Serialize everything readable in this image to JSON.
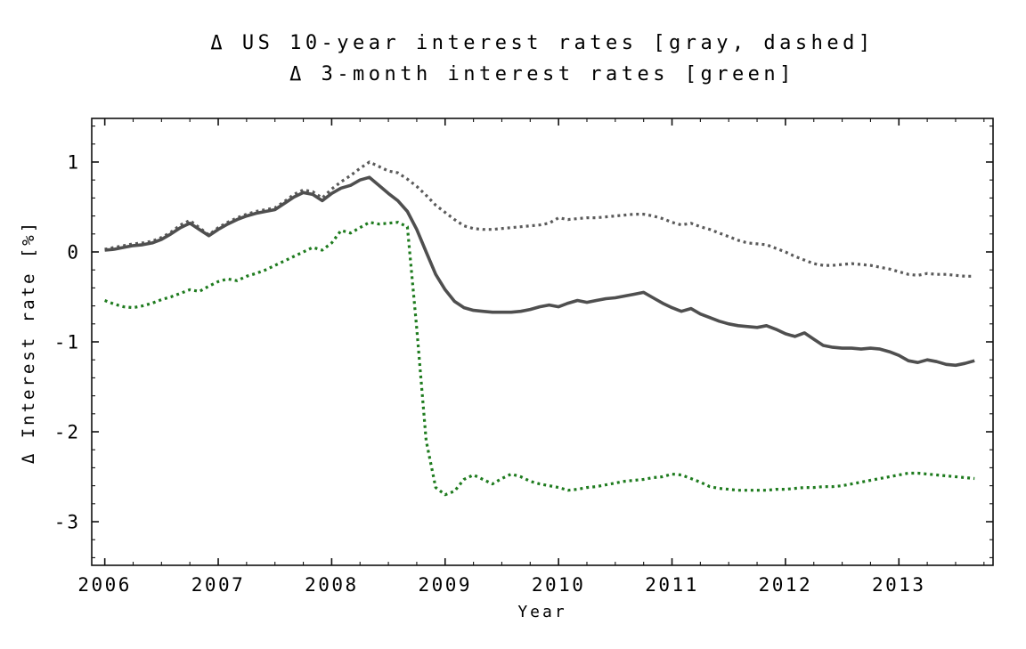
{
  "title": {
    "line1": "Δ US 10-year interest rates [gray, dashed]",
    "line2": "Δ 3-month interest rates [green]"
  },
  "frame_color": "#111111",
  "background_color": "#ffffff",
  "chart_data": {
    "type": "line",
    "title": "Δ US 10-year interest rates [gray, dashed] / Δ 3-month interest rates [green]",
    "xlabel": "Year",
    "ylabel": "Δ Interest rate [%]",
    "legend_position": "in-title",
    "grid": false,
    "xlim": [
      2005.885,
      2013.83
    ],
    "ylim": [
      -3.485,
      1.485
    ],
    "x_ticks": [
      2006,
      2007,
      2008,
      2009,
      2010,
      2011,
      2012,
      2013
    ],
    "y_ticks": [
      1,
      0,
      -1,
      -2,
      -3
    ],
    "x_tick_labels": [
      "2006",
      "2007",
      "2008",
      "2009",
      "2010",
      "2011",
      "2012",
      "2013"
    ],
    "y_tick_labels": [
      "1",
      "0",
      "-1",
      "-2",
      "-3"
    ],
    "x_minor_step": 0.25,
    "y_minor_step": 0.2,
    "x": [
      2006.0,
      2006.083,
      2006.167,
      2006.25,
      2006.333,
      2006.417,
      2006.5,
      2006.583,
      2006.667,
      2006.75,
      2006.833,
      2006.917,
      2007.0,
      2007.083,
      2007.167,
      2007.25,
      2007.333,
      2007.417,
      2007.5,
      2007.583,
      2007.667,
      2007.75,
      2007.833,
      2007.917,
      2008.0,
      2008.083,
      2008.167,
      2008.25,
      2008.333,
      2008.417,
      2008.5,
      2008.583,
      2008.667,
      2008.75,
      2008.833,
      2008.917,
      2009.0,
      2009.083,
      2009.167,
      2009.25,
      2009.333,
      2009.417,
      2009.5,
      2009.583,
      2009.667,
      2009.75,
      2009.833,
      2009.917,
      2010.0,
      2010.083,
      2010.167,
      2010.25,
      2010.333,
      2010.417,
      2010.5,
      2010.583,
      2010.667,
      2010.75,
      2010.833,
      2010.917,
      2011.0,
      2011.083,
      2011.167,
      2011.25,
      2011.333,
      2011.417,
      2011.5,
      2011.583,
      2011.667,
      2011.75,
      2011.833,
      2011.917,
      2012.0,
      2012.083,
      2012.167,
      2012.25,
      2012.333,
      2012.417,
      2012.5,
      2012.583,
      2012.667,
      2012.75,
      2012.833,
      2012.917,
      2013.0,
      2013.083,
      2013.167,
      2013.25,
      2013.333,
      2013.417,
      2013.5,
      2013.583,
      2013.667
    ],
    "series": [
      {
        "name": "US 10-year interest rates [gray, dashed]",
        "style": "dashed",
        "color": "#5a5a5a",
        "width": 3.2,
        "dash": [
          3,
          4
        ],
        "values": [
          0.03,
          0.05,
          0.07,
          0.09,
          0.1,
          0.12,
          0.16,
          0.22,
          0.3,
          0.35,
          0.27,
          0.19,
          0.27,
          0.33,
          0.38,
          0.42,
          0.45,
          0.47,
          0.49,
          0.56,
          0.64,
          0.69,
          0.67,
          0.6,
          0.7,
          0.78,
          0.85,
          0.93,
          1.0,
          0.95,
          0.9,
          0.88,
          0.81,
          0.73,
          0.63,
          0.52,
          0.44,
          0.36,
          0.29,
          0.26,
          0.25,
          0.25,
          0.26,
          0.27,
          0.28,
          0.29,
          0.3,
          0.32,
          0.38,
          0.36,
          0.37,
          0.38,
          0.38,
          0.39,
          0.4,
          0.41,
          0.42,
          0.42,
          0.4,
          0.37,
          0.33,
          0.3,
          0.32,
          0.28,
          0.25,
          0.21,
          0.17,
          0.13,
          0.1,
          0.09,
          0.08,
          0.04,
          0.0,
          -0.05,
          -0.09,
          -0.13,
          -0.15,
          -0.15,
          -0.14,
          -0.13,
          -0.14,
          -0.15,
          -0.17,
          -0.19,
          -0.22,
          -0.25,
          -0.26,
          -0.24,
          -0.25,
          -0.25,
          -0.26,
          -0.27,
          -0.27
        ]
      },
      {
        "name": "unlabeled 10-year series (dark solid)",
        "style": "solid",
        "color": "#4f4f4f",
        "width": 3.6,
        "dash": null,
        "values": [
          0.02,
          0.03,
          0.05,
          0.07,
          0.08,
          0.1,
          0.14,
          0.2,
          0.27,
          0.32,
          0.25,
          0.18,
          0.25,
          0.31,
          0.36,
          0.4,
          0.43,
          0.45,
          0.47,
          0.54,
          0.61,
          0.66,
          0.64,
          0.57,
          0.65,
          0.71,
          0.74,
          0.8,
          0.83,
          0.74,
          0.65,
          0.57,
          0.45,
          0.25,
          0.0,
          -0.25,
          -0.42,
          -0.55,
          -0.62,
          -0.65,
          -0.66,
          -0.67,
          -0.67,
          -0.67,
          -0.66,
          -0.64,
          -0.61,
          -0.59,
          -0.61,
          -0.57,
          -0.54,
          -0.56,
          -0.54,
          -0.52,
          -0.51,
          -0.49,
          -0.47,
          -0.45,
          -0.51,
          -0.57,
          -0.62,
          -0.66,
          -0.63,
          -0.69,
          -0.73,
          -0.77,
          -0.8,
          -0.82,
          -0.83,
          -0.84,
          -0.82,
          -0.86,
          -0.91,
          -0.94,
          -0.9,
          -0.97,
          -1.04,
          -1.06,
          -1.07,
          -1.07,
          -1.08,
          -1.07,
          -1.08,
          -1.11,
          -1.15,
          -1.21,
          -1.23,
          -1.2,
          -1.22,
          -1.25,
          -1.26,
          -1.24,
          -1.21
        ]
      },
      {
        "name": "3-month interest rates [green]",
        "style": "dotted",
        "color": "#1e7b1e",
        "width": 3.2,
        "dash": [
          3,
          4
        ],
        "values": [
          -0.54,
          -0.58,
          -0.61,
          -0.62,
          -0.6,
          -0.57,
          -0.53,
          -0.5,
          -0.46,
          -0.42,
          -0.44,
          -0.38,
          -0.33,
          -0.3,
          -0.32,
          -0.27,
          -0.24,
          -0.2,
          -0.15,
          -0.1,
          -0.05,
          0.0,
          0.05,
          0.02,
          0.1,
          0.24,
          0.21,
          0.27,
          0.33,
          0.31,
          0.32,
          0.33,
          0.28,
          -0.85,
          -2.1,
          -2.62,
          -2.7,
          -2.66,
          -2.53,
          -2.48,
          -2.53,
          -2.58,
          -2.52,
          -2.47,
          -2.5,
          -2.55,
          -2.58,
          -2.6,
          -2.62,
          -2.65,
          -2.64,
          -2.62,
          -2.61,
          -2.59,
          -2.57,
          -2.55,
          -2.54,
          -2.53,
          -2.51,
          -2.5,
          -2.47,
          -2.48,
          -2.52,
          -2.56,
          -2.61,
          -2.63,
          -2.64,
          -2.65,
          -2.65,
          -2.65,
          -2.65,
          -2.64,
          -2.64,
          -2.63,
          -2.62,
          -2.62,
          -2.61,
          -2.61,
          -2.6,
          -2.58,
          -2.56,
          -2.54,
          -2.52,
          -2.5,
          -2.48,
          -2.46,
          -2.46,
          -2.47,
          -2.48,
          -2.49,
          -2.5,
          -2.51,
          -2.52
        ]
      }
    ]
  }
}
